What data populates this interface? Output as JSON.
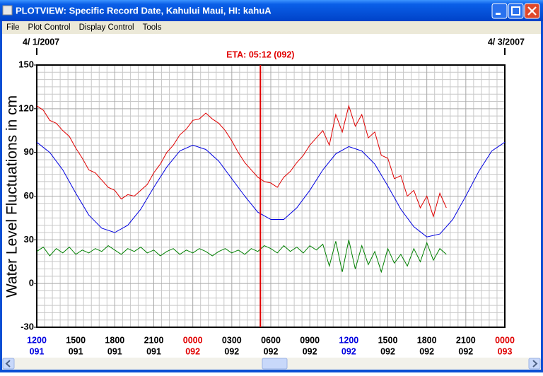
{
  "window": {
    "title": "PLOTVIEW: Specific Record Date, Kahului Maui, HI: kahuA"
  },
  "menu": [
    "File",
    "Plot Control",
    "Display Control",
    "Tools"
  ],
  "chart_data": {
    "type": "line",
    "ylabel": "Water Level Fluctuations in cm",
    "xlim": [
      0,
      36
    ],
    "ylim": [
      -30,
      150
    ],
    "yticks": [
      -30,
      0,
      30,
      60,
      90,
      120,
      150
    ],
    "xticks": [
      {
        "value": 0,
        "label": "1200"
      },
      {
        "value": 3,
        "label": "1500"
      },
      {
        "value": 6,
        "label": "1800"
      },
      {
        "value": 9,
        "label": "2100"
      },
      {
        "value": 12,
        "label": "0000"
      },
      {
        "value": 15,
        "label": "0300"
      },
      {
        "value": 18,
        "label": "0600"
      },
      {
        "value": 21,
        "label": "0900"
      },
      {
        "value": 24,
        "label": "1200"
      },
      {
        "value": 27,
        "label": "1500"
      },
      {
        "value": 30,
        "label": "1800"
      },
      {
        "value": 33,
        "label": "2100"
      },
      {
        "value": 36,
        "label": "0000"
      }
    ],
    "xtick_days": [
      "091",
      "091",
      "091",
      "091",
      "092",
      "092",
      "092",
      "092",
      "092",
      "092",
      "092",
      "092",
      "093"
    ],
    "xtick_colors": [
      "#0000e0",
      "#000000",
      "#000000",
      "#000000",
      "#e00000",
      "#000000",
      "#000000",
      "#000000",
      "#0000e0",
      "#000000",
      "#000000",
      "#000000",
      "#e00000"
    ],
    "xtick_day_colors": [
      "#0000e0",
      "#000000",
      "#000000",
      "#000000",
      "#e00000",
      "#000000",
      "#000000",
      "#000000",
      "#0000e0",
      "#000000",
      "#000000",
      "#000000",
      "#e00000"
    ],
    "date_markers": [
      {
        "value": 0,
        "label": "4/ 1/2007"
      },
      {
        "value": 36,
        "label": "4/ 3/2007"
      }
    ],
    "eta": {
      "value": 17.2,
      "label": "ETA: 05:12 (092)",
      "color": "#e00000"
    },
    "grid": true,
    "series": [
      {
        "color": "#e00000",
        "x": [
          0,
          0.5,
          1,
          1.5,
          2,
          2.5,
          3,
          3.5,
          4,
          4.5,
          5,
          5.5,
          6,
          6.5,
          7,
          7.5,
          8,
          8.5,
          9,
          9.5,
          10,
          10.5,
          11,
          11.5,
          12,
          12.5,
          13,
          13.5,
          14,
          14.5,
          15,
          15.5,
          16,
          16.5,
          17,
          17.5,
          18,
          18.5,
          19,
          19.5,
          20,
          20.5,
          21,
          21.5,
          22,
          22.5,
          23,
          23.5,
          24,
          24.5,
          25,
          25.5,
          26,
          26.5,
          27,
          27.5,
          28,
          28.5,
          29,
          29.5,
          30,
          30.5,
          31,
          31.5
        ],
        "values": [
          122,
          119,
          112,
          110,
          105,
          101,
          93,
          86,
          78,
          76,
          71,
          66,
          64,
          58,
          61,
          60,
          64,
          68,
          76,
          82,
          90,
          95,
          102,
          106,
          112,
          113,
          117,
          113,
          110,
          105,
          98,
          90,
          83,
          78,
          73,
          70,
          69,
          66,
          73,
          77,
          83,
          88,
          95,
          100,
          105,
          95,
          116,
          104,
          122,
          108,
          116,
          100,
          104,
          88,
          86,
          72,
          74,
          60,
          64,
          52,
          60,
          46,
          62,
          52
        ]
      },
      {
        "color": "#0000e0",
        "x": [
          0,
          1,
          2,
          3,
          4,
          5,
          6,
          7,
          8,
          9,
          10,
          11,
          12,
          13,
          14,
          15,
          16,
          17,
          18,
          19,
          20,
          21,
          22,
          23,
          24,
          25,
          26,
          27,
          28,
          29,
          30,
          31,
          32,
          33,
          34,
          35,
          36
        ],
        "values": [
          97,
          90,
          78,
          62,
          47,
          38,
          35,
          40,
          51,
          66,
          80,
          91,
          95,
          92,
          84,
          72,
          60,
          49,
          44,
          44,
          52,
          64,
          78,
          89,
          94,
          91,
          82,
          67,
          51,
          39,
          32,
          34,
          44,
          60,
          77,
          91,
          97
        ]
      },
      {
        "color": "#008000",
        "x": [
          0,
          0.5,
          1,
          1.5,
          2,
          2.5,
          3,
          3.5,
          4,
          4.5,
          5,
          5.5,
          6,
          6.5,
          7,
          7.5,
          8,
          8.5,
          9,
          9.5,
          10,
          10.5,
          11,
          11.5,
          12,
          12.5,
          13,
          13.5,
          14,
          14.5,
          15,
          15.5,
          16,
          16.5,
          17,
          17.5,
          18,
          18.5,
          19,
          19.5,
          20,
          20.5,
          21,
          21.5,
          22,
          22.5,
          23,
          23.5,
          24,
          24.5,
          25,
          25.5,
          26,
          26.5,
          27,
          27.5,
          28,
          28.5,
          29,
          29.5,
          30,
          30.5,
          31,
          31.5
        ],
        "values": [
          22,
          25,
          19,
          24,
          21,
          25,
          20,
          23,
          21,
          24,
          22,
          26,
          23,
          20,
          24,
          22,
          25,
          21,
          23,
          19,
          22,
          24,
          20,
          23,
          21,
          24,
          22,
          19,
          22,
          24,
          21,
          23,
          20,
          24,
          22,
          26,
          24,
          21,
          26,
          22,
          25,
          21,
          26,
          23,
          27,
          12,
          29,
          8,
          30,
          10,
          26,
          13,
          22,
          8,
          24,
          14,
          20,
          12,
          24,
          15,
          28,
          16,
          24,
          20
        ]
      }
    ]
  }
}
